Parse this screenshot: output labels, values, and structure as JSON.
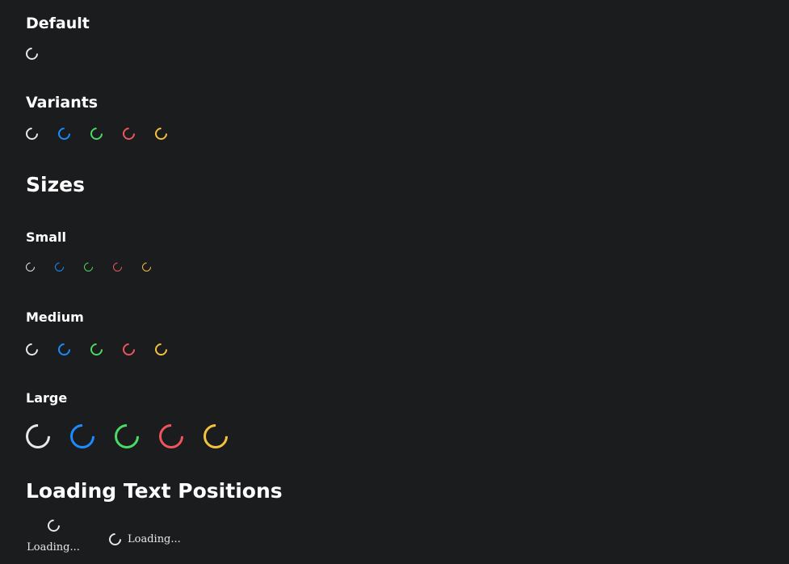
{
  "sections": {
    "default": {
      "title": "Default"
    },
    "variants": {
      "title": "Variants"
    },
    "sizes": {
      "title": "Sizes",
      "small": {
        "title": "Small"
      },
      "medium": {
        "title": "Medium"
      },
      "large": {
        "title": "Large"
      }
    },
    "loading_text_positions": {
      "title": "Loading Text Positions",
      "bottom_label": "Loading...",
      "right_label": "Loading..."
    }
  },
  "colors": {
    "background": "#1b1c1e",
    "default": "#e8e8ea",
    "primary": "#1a8cff",
    "success": "#4cd964",
    "danger": "#f0555f",
    "warning": "#f5c33b"
  }
}
